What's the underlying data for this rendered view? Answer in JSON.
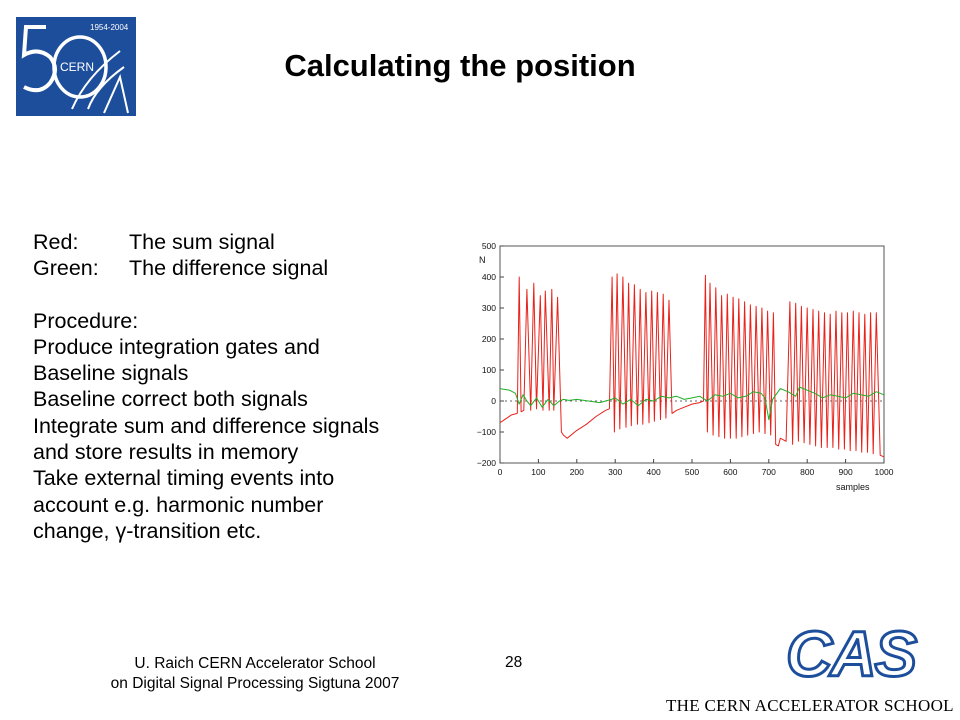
{
  "logo": {
    "years": "1954-2004",
    "org": "CERN",
    "number": "50",
    "colors": {
      "background": "#1d4e9b",
      "foreground": "#ffffff"
    }
  },
  "title": "Calculating the position",
  "legend_lines": [
    {
      "key": "Red:",
      "text": "The sum signal"
    },
    {
      "key": "Green:",
      "text": "The difference signal"
    }
  ],
  "procedure": {
    "heading": "Procedure:",
    "lines": [
      "Produce integration gates and",
      "Baseline signals",
      "Baseline correct both signals",
      "Integrate sum and difference signals",
      "and store results in memory",
      "Take external timing events into",
      "account e.g. harmonic number",
      "change, γ-transition etc."
    ]
  },
  "footer": {
    "left_line1": "U. Raich  CERN Accelerator School",
    "left_line2": "on Digital Signal Processing  Sigtuna 2007",
    "page_number": "28"
  },
  "cas": {
    "logo_text": "CAS",
    "caption": "THE CERN ACCELERATOR SCHOOL",
    "color": "#1d4e9b"
  },
  "chart_data": {
    "type": "line",
    "xlabel": "samples",
    "ylabel": "N",
    "xlim": [
      0,
      1000
    ],
    "ylim": [
      -200,
      500
    ],
    "x_ticks": [
      0,
      100,
      200,
      300,
      400,
      500,
      600,
      700,
      800,
      900,
      1000
    ],
    "y_ticks": [
      -200,
      -100,
      0,
      100,
      200,
      300,
      400,
      500
    ],
    "y_tick_labels": [
      "−200",
      "−100",
      "0",
      "100",
      "200",
      "300",
      "400",
      "500"
    ],
    "grid": false,
    "zero_line": "dotted",
    "series": [
      {
        "color": "#e8221b",
        "x": [
          0,
          30,
          45,
          50,
          55,
          62,
          70,
          80,
          88,
          95,
          105,
          112,
          118,
          128,
          135,
          140,
          150,
          160,
          165,
          175,
          180,
          200,
          225,
          250,
          275,
          285,
          292,
          298,
          305,
          312,
          320,
          328,
          335,
          342,
          350,
          358,
          365,
          372,
          380,
          388,
          395,
          402,
          410,
          418,
          425,
          432,
          440,
          448,
          460,
          480,
          500,
          520,
          530,
          535,
          540,
          547,
          555,
          562,
          570,
          577,
          585,
          592,
          600,
          607,
          615,
          622,
          630,
          637,
          645,
          652,
          660,
          667,
          675,
          682,
          690,
          697,
          705,
          712,
          718,
          725,
          730,
          745,
          755,
          762,
          770,
          777,
          785,
          792,
          800,
          807,
          815,
          822,
          830,
          837,
          845,
          852,
          860,
          867,
          875,
          882,
          890,
          897,
          905,
          912,
          920,
          927,
          935,
          942,
          950,
          957,
          965,
          972,
          980,
          990,
          1000
        ],
        "y": [
          -70,
          -45,
          -40,
          400,
          -35,
          -30,
          360,
          -30,
          380,
          -25,
          340,
          -30,
          355,
          -30,
          360,
          -30,
          335,
          -100,
          -110,
          -120,
          -115,
          -95,
          -75,
          -50,
          -30,
          -25,
          400,
          -100,
          410,
          -90,
          400,
          -85,
          380,
          -80,
          375,
          -75,
          360,
          -75,
          350,
          -70,
          355,
          -65,
          350,
          -60,
          345,
          -55,
          325,
          -40,
          -30,
          -20,
          -10,
          -5,
          0,
          405,
          -100,
          380,
          -110,
          365,
          -115,
          340,
          -120,
          345,
          -120,
          335,
          -120,
          330,
          -115,
          320,
          -110,
          310,
          -105,
          305,
          -100,
          300,
          -105,
          290,
          -110,
          285,
          -140,
          -145,
          -120,
          -130,
          320,
          -140,
          315,
          -130,
          305,
          -135,
          300,
          -140,
          295,
          -145,
          290,
          -150,
          285,
          -150,
          280,
          -150,
          290,
          -155,
          285,
          -155,
          285,
          -160,
          290,
          -160,
          285,
          -165,
          280,
          -165,
          285,
          -170,
          285,
          -175,
          -180
        ]
      },
      {
        "color": "#1fae26",
        "x": [
          0,
          25,
          40,
          50,
          60,
          70,
          80,
          95,
          110,
          125,
          140,
          155,
          165,
          180,
          200,
          230,
          260,
          290,
          300,
          320,
          340,
          360,
          380,
          400,
          420,
          440,
          460,
          480,
          500,
          520,
          540,
          560,
          580,
          600,
          620,
          640,
          660,
          680,
          690,
          700,
          710,
          730,
          750,
          770,
          780,
          790,
          800,
          820,
          840,
          860,
          880,
          900,
          920,
          940,
          960,
          980,
          990,
          1000
        ],
        "y": [
          40,
          35,
          25,
          -10,
          20,
          0,
          -15,
          10,
          -20,
          5,
          -15,
          0,
          5,
          2,
          5,
          0,
          -5,
          5,
          10,
          -10,
          5,
          -15,
          5,
          0,
          15,
          10,
          15,
          5,
          10,
          15,
          0,
          20,
          15,
          25,
          10,
          15,
          30,
          25,
          10,
          -60,
          5,
          40,
          30,
          15,
          45,
          40,
          35,
          25,
          10,
          20,
          15,
          10,
          25,
          20,
          15,
          30,
          25,
          20
        ]
      }
    ]
  }
}
